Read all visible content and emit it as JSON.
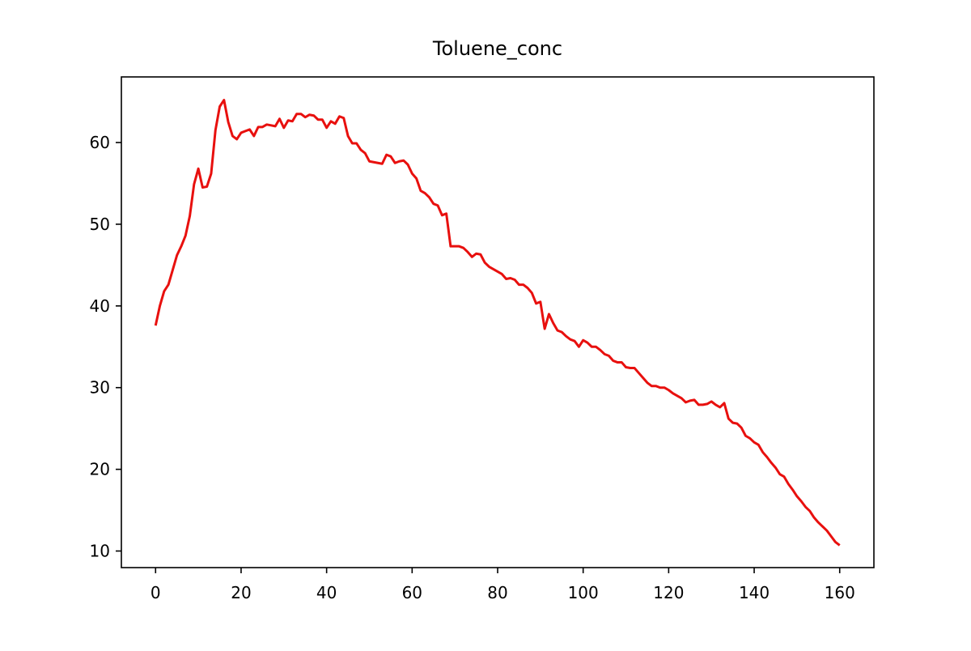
{
  "chart_data": {
    "type": "line",
    "title": "Toluene_conc",
    "x": [
      0,
      1,
      2,
      3,
      4,
      5,
      6,
      7,
      8,
      9,
      10,
      11,
      12,
      13,
      14,
      15,
      16,
      17,
      18,
      19,
      20,
      21,
      22,
      23,
      24,
      25,
      26,
      27,
      28,
      29,
      30,
      31,
      32,
      33,
      34,
      35,
      36,
      37,
      38,
      39,
      40,
      41,
      42,
      43,
      44,
      45,
      46,
      47,
      48,
      49,
      50,
      51,
      52,
      53,
      54,
      55,
      56,
      57,
      58,
      59,
      60,
      61,
      62,
      63,
      64,
      65,
      66,
      67,
      68,
      69,
      70,
      71,
      72,
      73,
      74,
      75,
      76,
      77,
      78,
      79,
      80,
      81,
      82,
      83,
      84,
      85,
      86,
      87,
      88,
      89,
      90,
      91,
      92,
      93,
      94,
      95,
      96,
      97,
      98,
      99,
      100,
      101,
      102,
      103,
      104,
      105,
      106,
      107,
      108,
      109,
      110,
      111,
      112,
      113,
      114,
      115,
      116,
      117,
      118,
      119,
      120,
      121,
      122,
      123,
      124,
      125,
      126,
      127,
      128,
      129,
      130,
      131,
      132,
      133,
      134,
      135,
      136,
      137,
      138,
      139,
      140,
      141,
      142,
      143,
      144,
      145,
      146,
      147,
      148,
      149,
      150,
      151,
      152,
      153,
      154,
      155,
      156,
      157,
      158,
      159,
      160
    ],
    "series": [
      {
        "name": "Toluene_conc",
        "color": "#e8100e",
        "values": [
          37.6,
          40,
          41.8,
          42.6,
          44.4,
          46.2,
          47.3,
          48.6,
          51,
          54.9,
          56.8,
          54.5,
          54.6,
          56.2,
          61.5,
          64.4,
          65.2,
          62.5,
          60.8,
          60.4,
          61.2,
          61.4,
          61.6,
          60.8,
          61.9,
          61.9,
          62.2,
          62.1,
          62,
          62.9,
          61.8,
          62.7,
          62.6,
          63.5,
          63.5,
          63.1,
          63.4,
          63.3,
          62.8,
          62.8,
          61.8,
          62.6,
          62.3,
          63.2,
          63,
          60.8,
          59.9,
          59.9,
          59.1,
          58.7,
          57.7,
          57.6,
          57.5,
          57.4,
          58.5,
          58.3,
          57.5,
          57.7,
          57.8,
          57.3,
          56.2,
          55.6,
          54.1,
          53.8,
          53.3,
          52.5,
          52.3,
          51.1,
          51.3,
          47.3,
          47.3,
          47.3,
          47.1,
          46.6,
          46,
          46.4,
          46.3,
          45.3,
          44.8,
          44.5,
          44.2,
          43.9,
          43.3,
          43.4,
          43.2,
          42.6,
          42.6,
          42.2,
          41.6,
          40.3,
          40.5,
          37.2,
          39,
          37.9,
          37,
          36.8,
          36.3,
          35.9,
          35.7,
          35,
          35.8,
          35.5,
          35,
          35,
          34.6,
          34.1,
          33.9,
          33.3,
          33.1,
          33.1,
          32.5,
          32.4,
          32.4,
          31.8,
          31.2,
          30.6,
          30.2,
          30.2,
          30,
          30,
          29.7,
          29.3,
          29,
          28.7,
          28.2,
          28.4,
          28.5,
          27.9,
          27.9,
          28,
          28.3,
          27.9,
          27.6,
          28.1,
          26.2,
          25.7,
          25.6,
          25.1,
          24.1,
          23.8,
          23.3,
          23,
          22.1,
          21.5,
          20.8,
          20.2,
          19.4,
          19.1,
          18.2,
          17.5,
          16.7,
          16.1,
          15.4,
          14.9,
          14.1,
          13.5,
          13,
          12.5,
          11.8,
          11.1,
          10.7
        ]
      }
    ],
    "xlim": [
      -8,
      168
    ],
    "xticks": [
      0,
      20,
      40,
      60,
      80,
      100,
      120,
      140,
      160
    ],
    "ylim": [
      7.97,
      68.03
    ],
    "yticks": [
      10,
      20,
      30,
      40,
      50,
      60
    ]
  }
}
